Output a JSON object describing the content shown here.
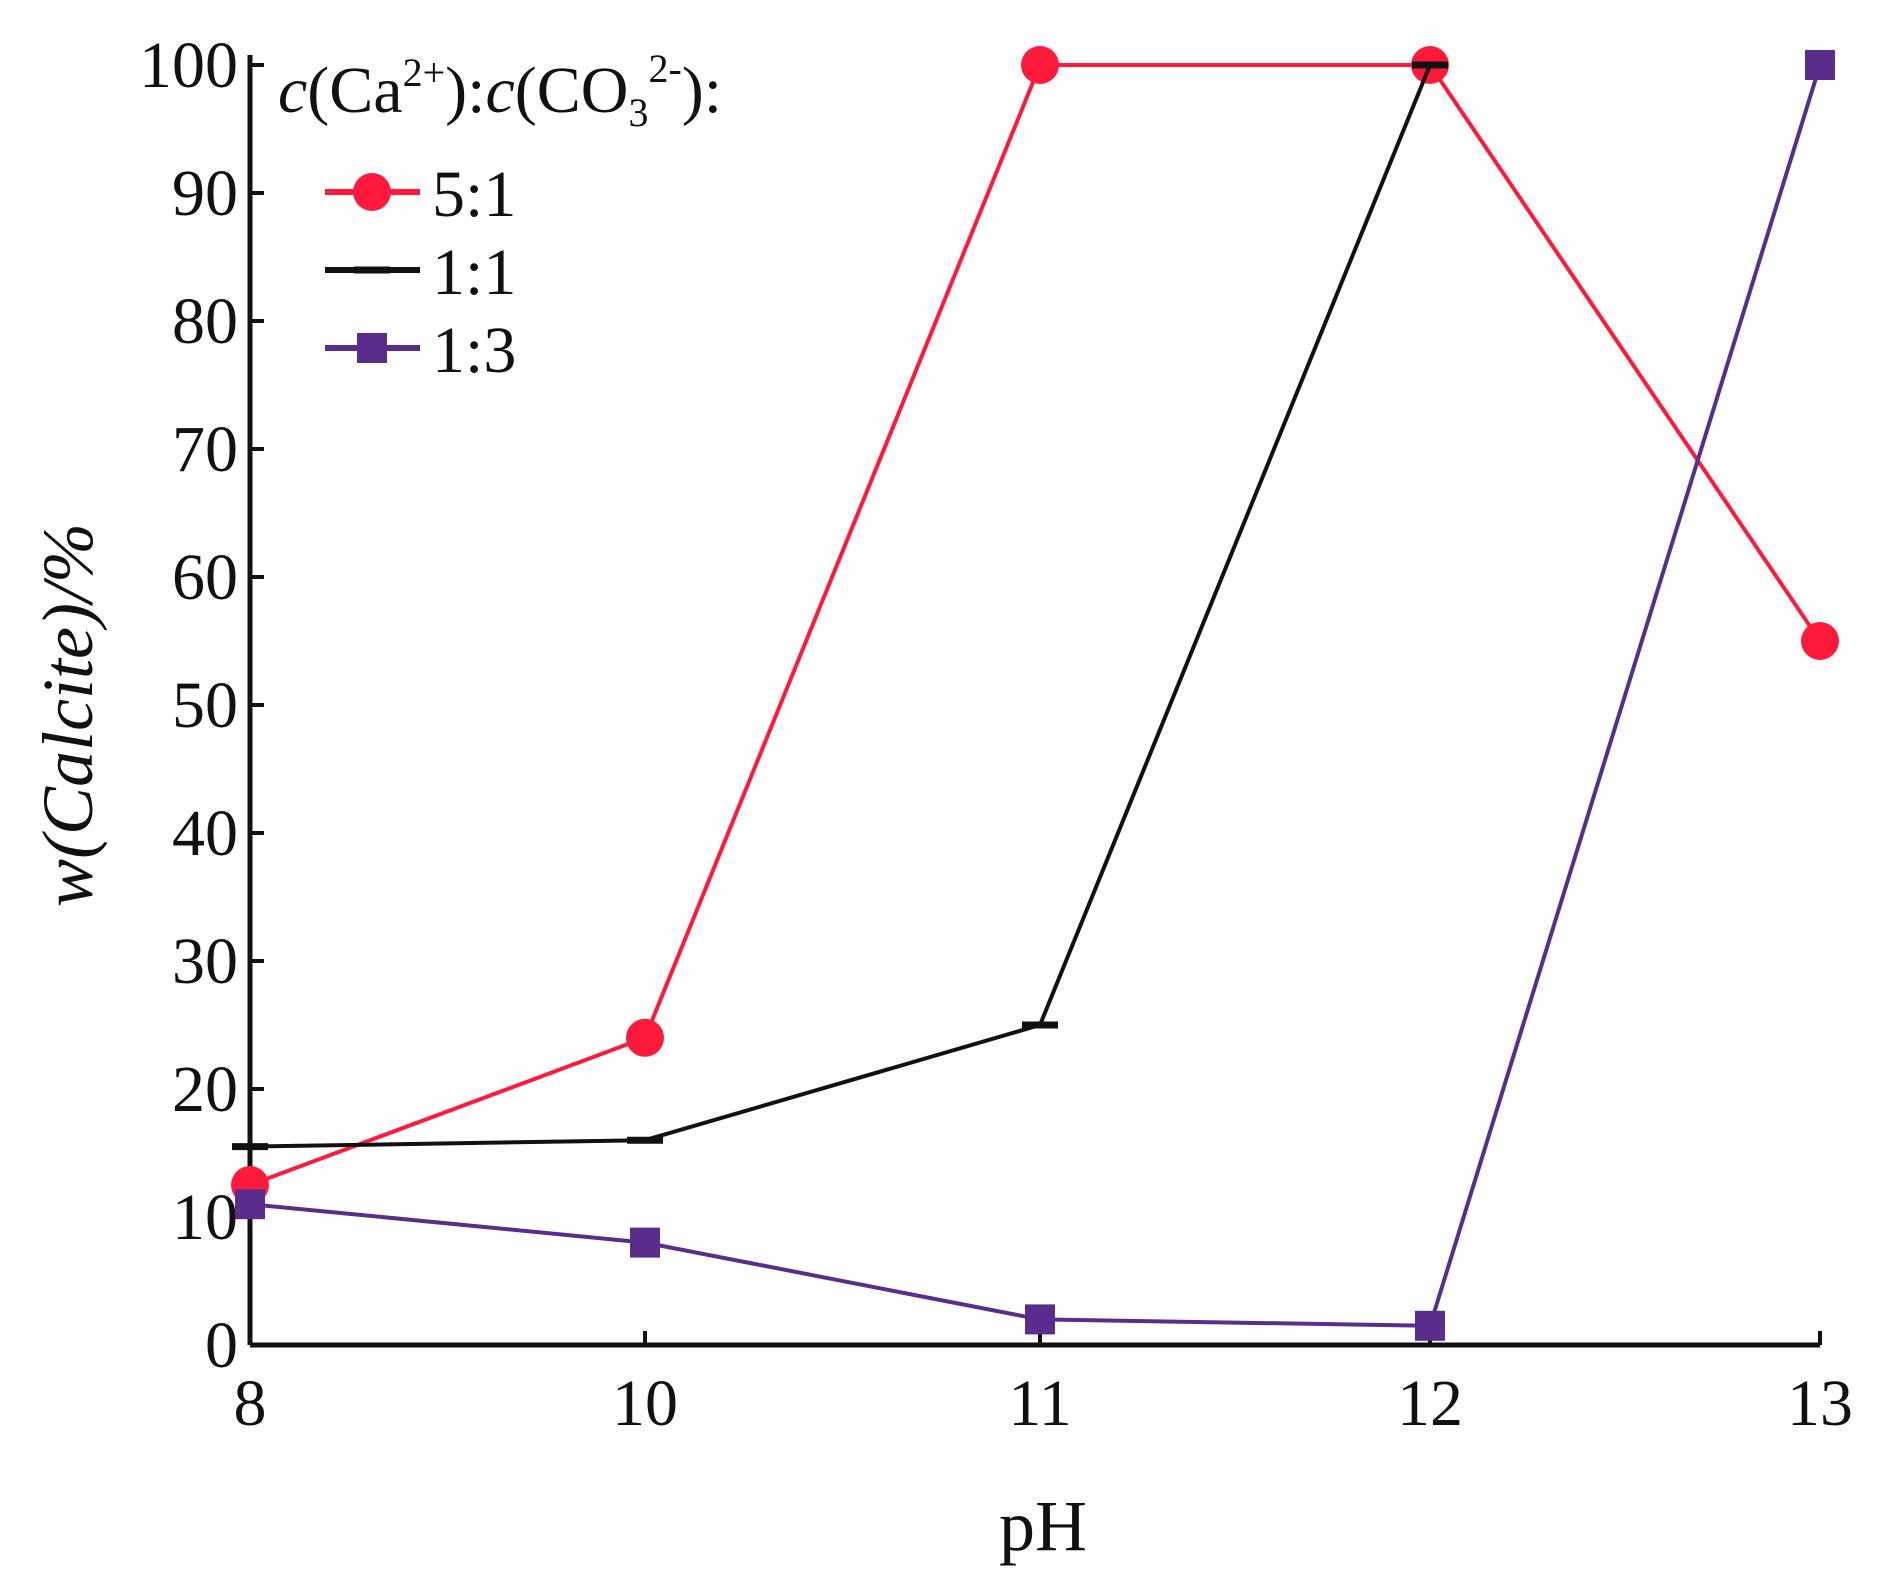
{
  "chart_data": {
    "type": "line",
    "x_categories": [
      "8",
      "10",
      "11",
      "12",
      "13"
    ],
    "xlabel": "pH",
    "ylabel": "w(Calcite)/%",
    "ylim": [
      0,
      100
    ],
    "yticks": [
      "0",
      "10",
      "20",
      "30",
      "40",
      "50",
      "60",
      "70",
      "80",
      "90",
      "100"
    ],
    "grid": false,
    "legend_position": "top-left",
    "legend_title": {
      "c1": "c",
      "ion1": "(Ca",
      "sup1": "2+",
      "mid": "):",
      "c2": "c",
      "ion2": "(CO",
      "sub2": "3",
      "sup2": "2-",
      "end": "):"
    },
    "series": [
      {
        "name": "5:1",
        "color": "#ff1a3c",
        "marker": "circle",
        "values": [
          12.5,
          24,
          100,
          100,
          55
        ]
      },
      {
        "name": "1:1",
        "color": "#111111",
        "marker": "dash",
        "values": [
          15.5,
          16,
          25,
          100,
          null
        ]
      },
      {
        "name": "1:3",
        "color": "#5a2d8c",
        "marker": "square",
        "values": [
          11,
          8,
          2,
          1.5,
          100
        ]
      }
    ]
  }
}
